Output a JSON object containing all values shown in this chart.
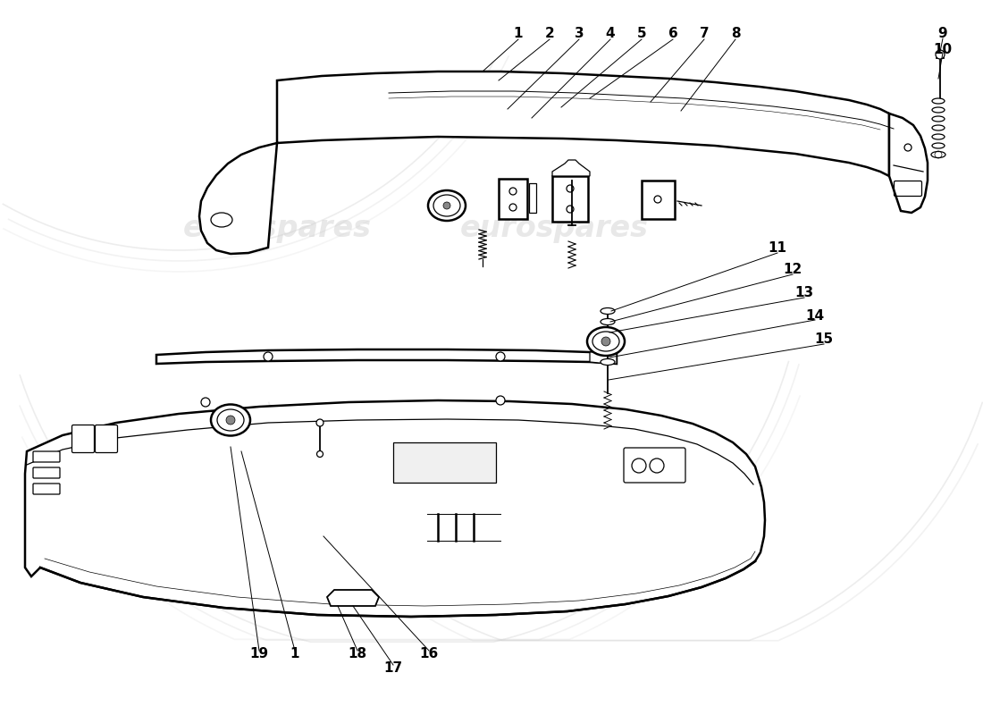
{
  "bg_color": "#ffffff",
  "line_color": "#000000",
  "watermark_color": "#cccccc",
  "lw_main": 1.8,
  "lw_thin": 0.9,
  "lw_med": 1.3,
  "top_labels": [
    [
      580,
      762,
      "1"
    ],
    [
      615,
      762,
      "2"
    ],
    [
      648,
      762,
      "3"
    ],
    [
      683,
      762,
      "4"
    ],
    [
      718,
      762,
      "5"
    ],
    [
      753,
      762,
      "6"
    ],
    [
      788,
      762,
      "7"
    ],
    [
      823,
      762,
      "8"
    ],
    [
      1055,
      762,
      "9"
    ],
    [
      1055,
      745,
      "10"
    ]
  ],
  "bottom_labels": [
    [
      870,
      522,
      "11"
    ],
    [
      887,
      498,
      "12"
    ],
    [
      900,
      472,
      "13"
    ],
    [
      912,
      447,
      "14"
    ],
    [
      922,
      420,
      "15"
    ],
    [
      480,
      68,
      "16"
    ],
    [
      440,
      52,
      "17"
    ],
    [
      400,
      68,
      "18"
    ],
    [
      290,
      68,
      "19"
    ],
    [
      330,
      68,
      "1"
    ]
  ]
}
